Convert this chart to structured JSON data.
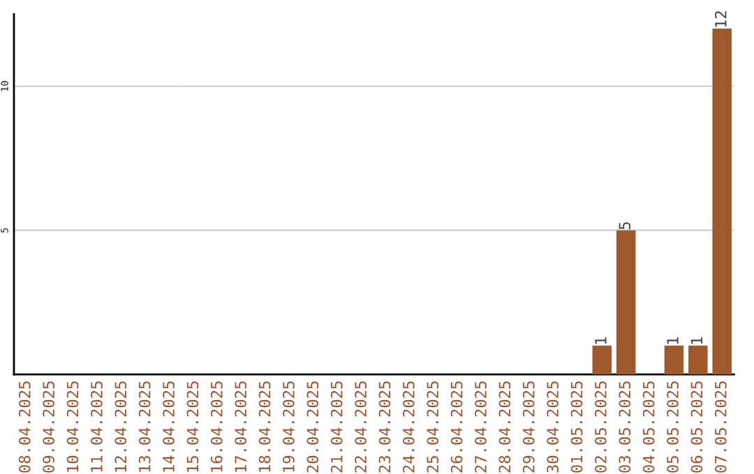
{
  "chart_data": {
    "type": "bar",
    "categories": [
      "08.04.2025",
      "09.04.2025",
      "10.04.2025",
      "11.04.2025",
      "12.04.2025",
      "13.04.2025",
      "14.04.2025",
      "15.04.2025",
      "16.04.2025",
      "17.04.2025",
      "18.04.2025",
      "19.04.2025",
      "20.04.2025",
      "21.04.2025",
      "22.04.2025",
      "23.04.2025",
      "24.04.2025",
      "25.04.2025",
      "26.04.2025",
      "27.04.2025",
      "28.04.2025",
      "29.04.2025",
      "30.04.2025",
      "01.05.2025",
      "02.05.2025",
      "03.05.2025",
      "04.05.2025",
      "05.05.2025",
      "06.05.2025",
      "07.05.2025"
    ],
    "values": [
      null,
      null,
      null,
      null,
      null,
      null,
      null,
      null,
      null,
      null,
      null,
      null,
      null,
      null,
      null,
      null,
      null,
      null,
      null,
      null,
      null,
      null,
      null,
      null,
      1,
      5,
      null,
      1,
      1,
      12
    ],
    "value_labels": [
      null,
      null,
      null,
      null,
      null,
      null,
      null,
      null,
      null,
      null,
      null,
      null,
      null,
      null,
      null,
      null,
      null,
      null,
      null,
      null,
      null,
      null,
      null,
      null,
      "1",
      "5",
      null,
      "1",
      "1",
      "12"
    ],
    "color": "#a0592a",
    "ylim": [
      0,
      12.5
    ],
    "yticks": [
      5,
      10
    ],
    "grid": "y"
  }
}
